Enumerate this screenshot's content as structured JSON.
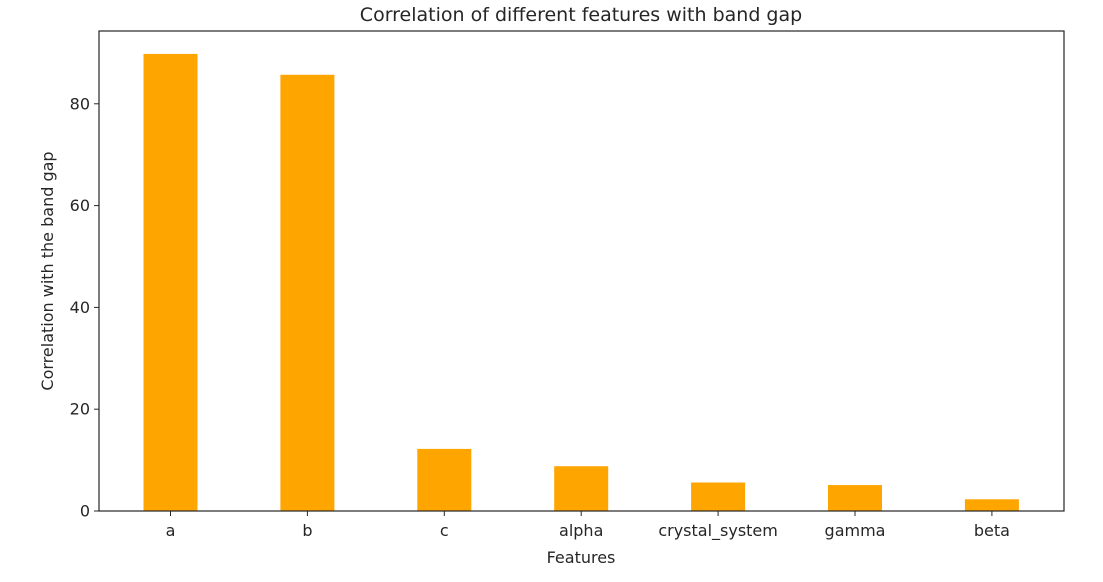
{
  "chart_data": {
    "type": "bar",
    "title": "Correlation of different features with band gap",
    "xlabel": "Features",
    "ylabel": "Correlation with the band gap",
    "categories": [
      "a",
      "b",
      "c",
      "alpha",
      "crystal_system",
      "gamma",
      "beta"
    ],
    "values": [
      89.8,
      85.7,
      12.2,
      8.8,
      5.6,
      5.1,
      2.3
    ],
    "yticks": [
      0,
      20,
      40,
      60,
      80
    ],
    "ylim": [
      0,
      94.3
    ],
    "grid": false,
    "legend": "none",
    "bar_color": "#ffa500"
  }
}
